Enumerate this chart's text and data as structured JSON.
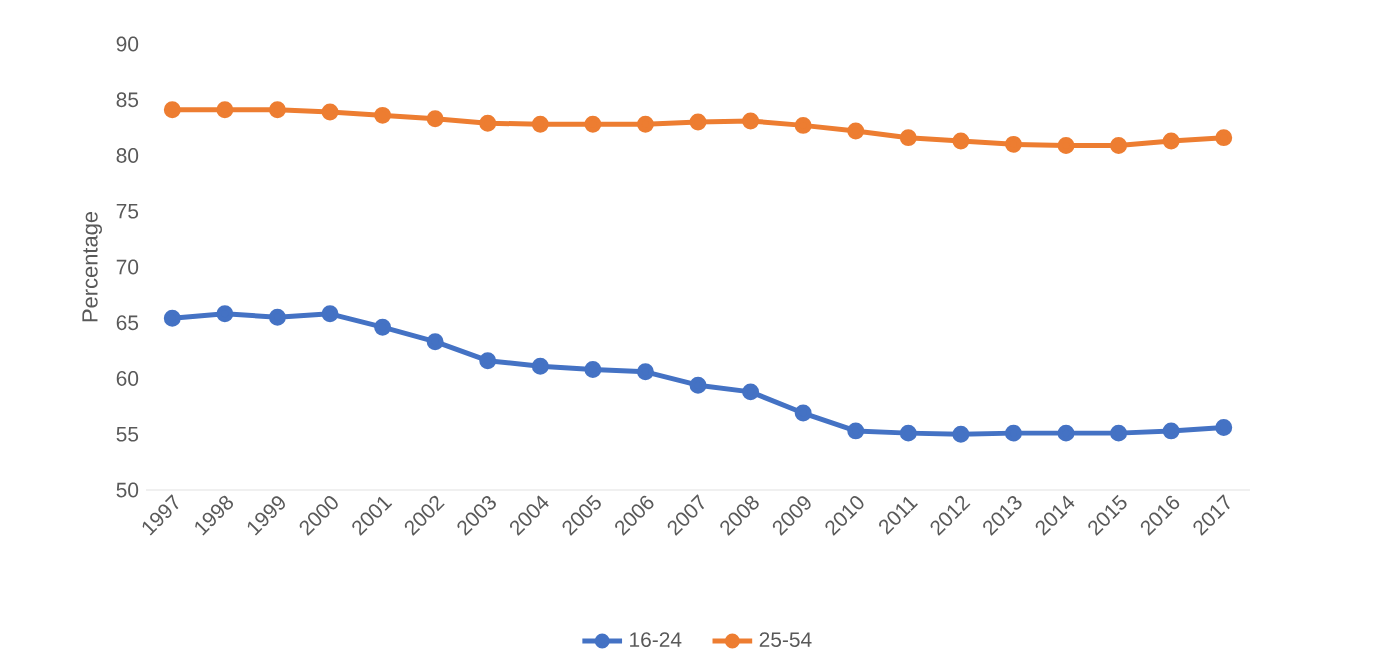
{
  "chart_data": {
    "type": "line",
    "ylabel": "Percentage",
    "categories": [
      "1997",
      "1998",
      "1999",
      "2000",
      "2001",
      "2002",
      "2003",
      "2004",
      "2005",
      "2006",
      "2007",
      "2008",
      "2009",
      "2010",
      "2011",
      "2012",
      "2013",
      "2014",
      "2015",
      "2016",
      "2017"
    ],
    "series": [
      {
        "name": "16-24",
        "color": "#4472c4",
        "values": [
          65.4,
          65.8,
          65.5,
          65.8,
          64.6,
          63.3,
          61.6,
          61.1,
          60.8,
          60.6,
          59.4,
          58.8,
          56.9,
          55.3,
          55.1,
          55.0,
          55.1,
          55.1,
          55.1,
          55.3,
          55.6
        ]
      },
      {
        "name": "25-54",
        "color": "#ed7d31",
        "values": [
          84.1,
          84.1,
          84.1,
          83.9,
          83.6,
          83.3,
          82.9,
          82.8,
          82.8,
          82.8,
          83.0,
          83.1,
          82.7,
          82.2,
          81.6,
          81.3,
          81.0,
          80.9,
          80.9,
          81.3,
          81.6
        ]
      }
    ],
    "ylim": [
      50,
      90
    ],
    "yticks": [
      50,
      55,
      60,
      65,
      70,
      75,
      80,
      85,
      90
    ],
    "grid": false,
    "legend": "bottom",
    "marker": "circle",
    "line_style": "solid"
  }
}
